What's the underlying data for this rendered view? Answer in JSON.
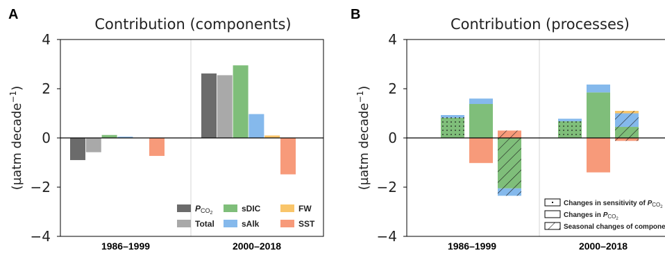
{
  "panel_a": {
    "label": "A",
    "title": "Contribution (components)"
  },
  "panel_b": {
    "label": "B",
    "title": "Contribution (processes)"
  },
  "axis": {
    "ylabel_main": "(µatm decade",
    "ylabel_exp": "−1",
    "ylabel_close": ")",
    "ticks": [
      "4",
      "2",
      "0",
      "−2",
      "−4"
    ],
    "categories": [
      "1986–1999",
      "2000–2018"
    ]
  },
  "colors": {
    "pco2": "#6b6b6b",
    "total": "#a9a9a9",
    "sdic": "#7fbe7a",
    "salk": "#85b9ec",
    "fw": "#f9c56a",
    "sst": "#f79a7a"
  },
  "legend_a": {
    "pco2_main": "P",
    "pco2_sub": "CO",
    "pco2_subsub": "2",
    "total": "Total",
    "sdic": "sDIC",
    "salk": "sAlk",
    "fw": "FW",
    "sst": "SST"
  },
  "legend_b": {
    "sensitivity_text": "Changes in sensitivity of ",
    "sensitivity_p": "P",
    "sensitivity_sub": "CO",
    "sensitivity_subsub": "2",
    "pco2_text": "Changes in ",
    "pco2_p": "P",
    "pco2_sub": "CO",
    "pco2_subsub": "2",
    "seasonal_text": "Seasonal changes of components"
  },
  "chart_data": [
    {
      "type": "bar",
      "title": "Contribution (components)",
      "ylabel": "(µatm decade−1)",
      "ylim": [
        -4,
        4
      ],
      "categories": [
        "1986–1999",
        "2000–2018"
      ],
      "series": [
        {
          "name": "PCO2",
          "values": [
            -0.9,
            2.62
          ]
        },
        {
          "name": "Total",
          "values": [
            -0.58,
            2.55
          ]
        },
        {
          "name": "sDIC",
          "values": [
            0.12,
            2.95
          ]
        },
        {
          "name": "sAlk",
          "values": [
            0.05,
            0.97
          ]
        },
        {
          "name": "FW",
          "values": [
            0.0,
            0.1
          ]
        },
        {
          "name": "SST",
          "values": [
            -0.73,
            -1.48
          ]
        }
      ]
    },
    {
      "type": "bar",
      "title": "Contribution (processes)",
      "ylabel": "(µatm decade−1)",
      "ylim": [
        -4,
        4
      ],
      "categories": [
        "1986–1999",
        "2000–2018"
      ],
      "stacked": true,
      "groups": [
        {
          "category": "1986–1999",
          "bars": [
            {
              "process": "Changes in sensitivity of PCO2",
              "segments": [
                {
                  "component": "sDIC",
                  "from": 0,
                  "to": 0.82
                },
                {
                  "component": "sAlk",
                  "from": 0.82,
                  "to": 0.93
                }
              ]
            },
            {
              "process": "Changes in PCO2",
              "segments": [
                {
                  "component": "sDIC",
                  "from": 0,
                  "to": 1.38
                },
                {
                  "component": "sAlk",
                  "from": 1.38,
                  "to": 1.6
                },
                {
                  "component": "SST",
                  "from": 0,
                  "to": -1.02
                }
              ]
            },
            {
              "process": "Seasonal changes of components",
              "segments": [
                {
                  "component": "SST",
                  "from": 0,
                  "to": 0.3
                },
                {
                  "component": "sDIC",
                  "from": 0,
                  "to": -2.05
                },
                {
                  "component": "sAlk",
                  "from": -2.05,
                  "to": -2.35
                }
              ]
            }
          ]
        },
        {
          "category": "2000–2018",
          "bars": [
            {
              "process": "Changes in sensitivity of PCO2",
              "segments": [
                {
                  "component": "sDIC",
                  "from": 0,
                  "to": 0.68
                },
                {
                  "component": "sAlk",
                  "from": 0.68,
                  "to": 0.78
                }
              ]
            },
            {
              "process": "Changes in PCO2",
              "segments": [
                {
                  "component": "sDIC",
                  "from": 0,
                  "to": 1.85
                },
                {
                  "component": "sAlk",
                  "from": 1.85,
                  "to": 2.17
                },
                {
                  "component": "SST",
                  "from": 0,
                  "to": -1.4
                }
              ]
            },
            {
              "process": "Seasonal changes of components",
              "segments": [
                {
                  "component": "sDIC",
                  "from": 0,
                  "to": 0.45
                },
                {
                  "component": "sAlk",
                  "from": 0.45,
                  "to": 1.0
                },
                {
                  "component": "FW",
                  "from": 1.0,
                  "to": 1.1
                },
                {
                  "component": "SST",
                  "from": 0,
                  "to": -0.12
                }
              ]
            }
          ]
        }
      ]
    }
  ]
}
